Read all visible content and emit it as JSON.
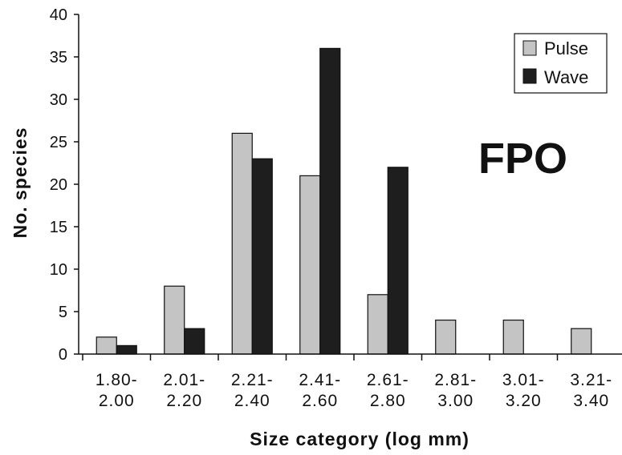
{
  "chart_data": {
    "type": "bar",
    "categories": [
      [
        "1.80-",
        "2.00"
      ],
      [
        "2.01-",
        "2.20"
      ],
      [
        "2.21-",
        "2.40"
      ],
      [
        "2.41-",
        "2.60"
      ],
      [
        "2.61-",
        "2.80"
      ],
      [
        "2.81-",
        "3.00"
      ],
      [
        "3.01-",
        "3.20"
      ],
      [
        "3.21-",
        "3.40"
      ]
    ],
    "series": [
      {
        "name": "Pulse",
        "color": "#c4c4c4",
        "values": [
          2,
          8,
          26,
          21,
          7,
          4,
          4,
          3
        ]
      },
      {
        "name": "Wave",
        "color": "#1e1e1e",
        "values": [
          1,
          3,
          23,
          36,
          22,
          0,
          0,
          0
        ]
      }
    ],
    "xlabel": "Size category (log mm)",
    "ylabel": "No. species",
    "ylim": [
      0,
      40
    ],
    "yticks": [
      0,
      5,
      10,
      15,
      20,
      25,
      30,
      35,
      40
    ],
    "annotation": "FPO",
    "legend_position": "top-right",
    "grid": false
  }
}
